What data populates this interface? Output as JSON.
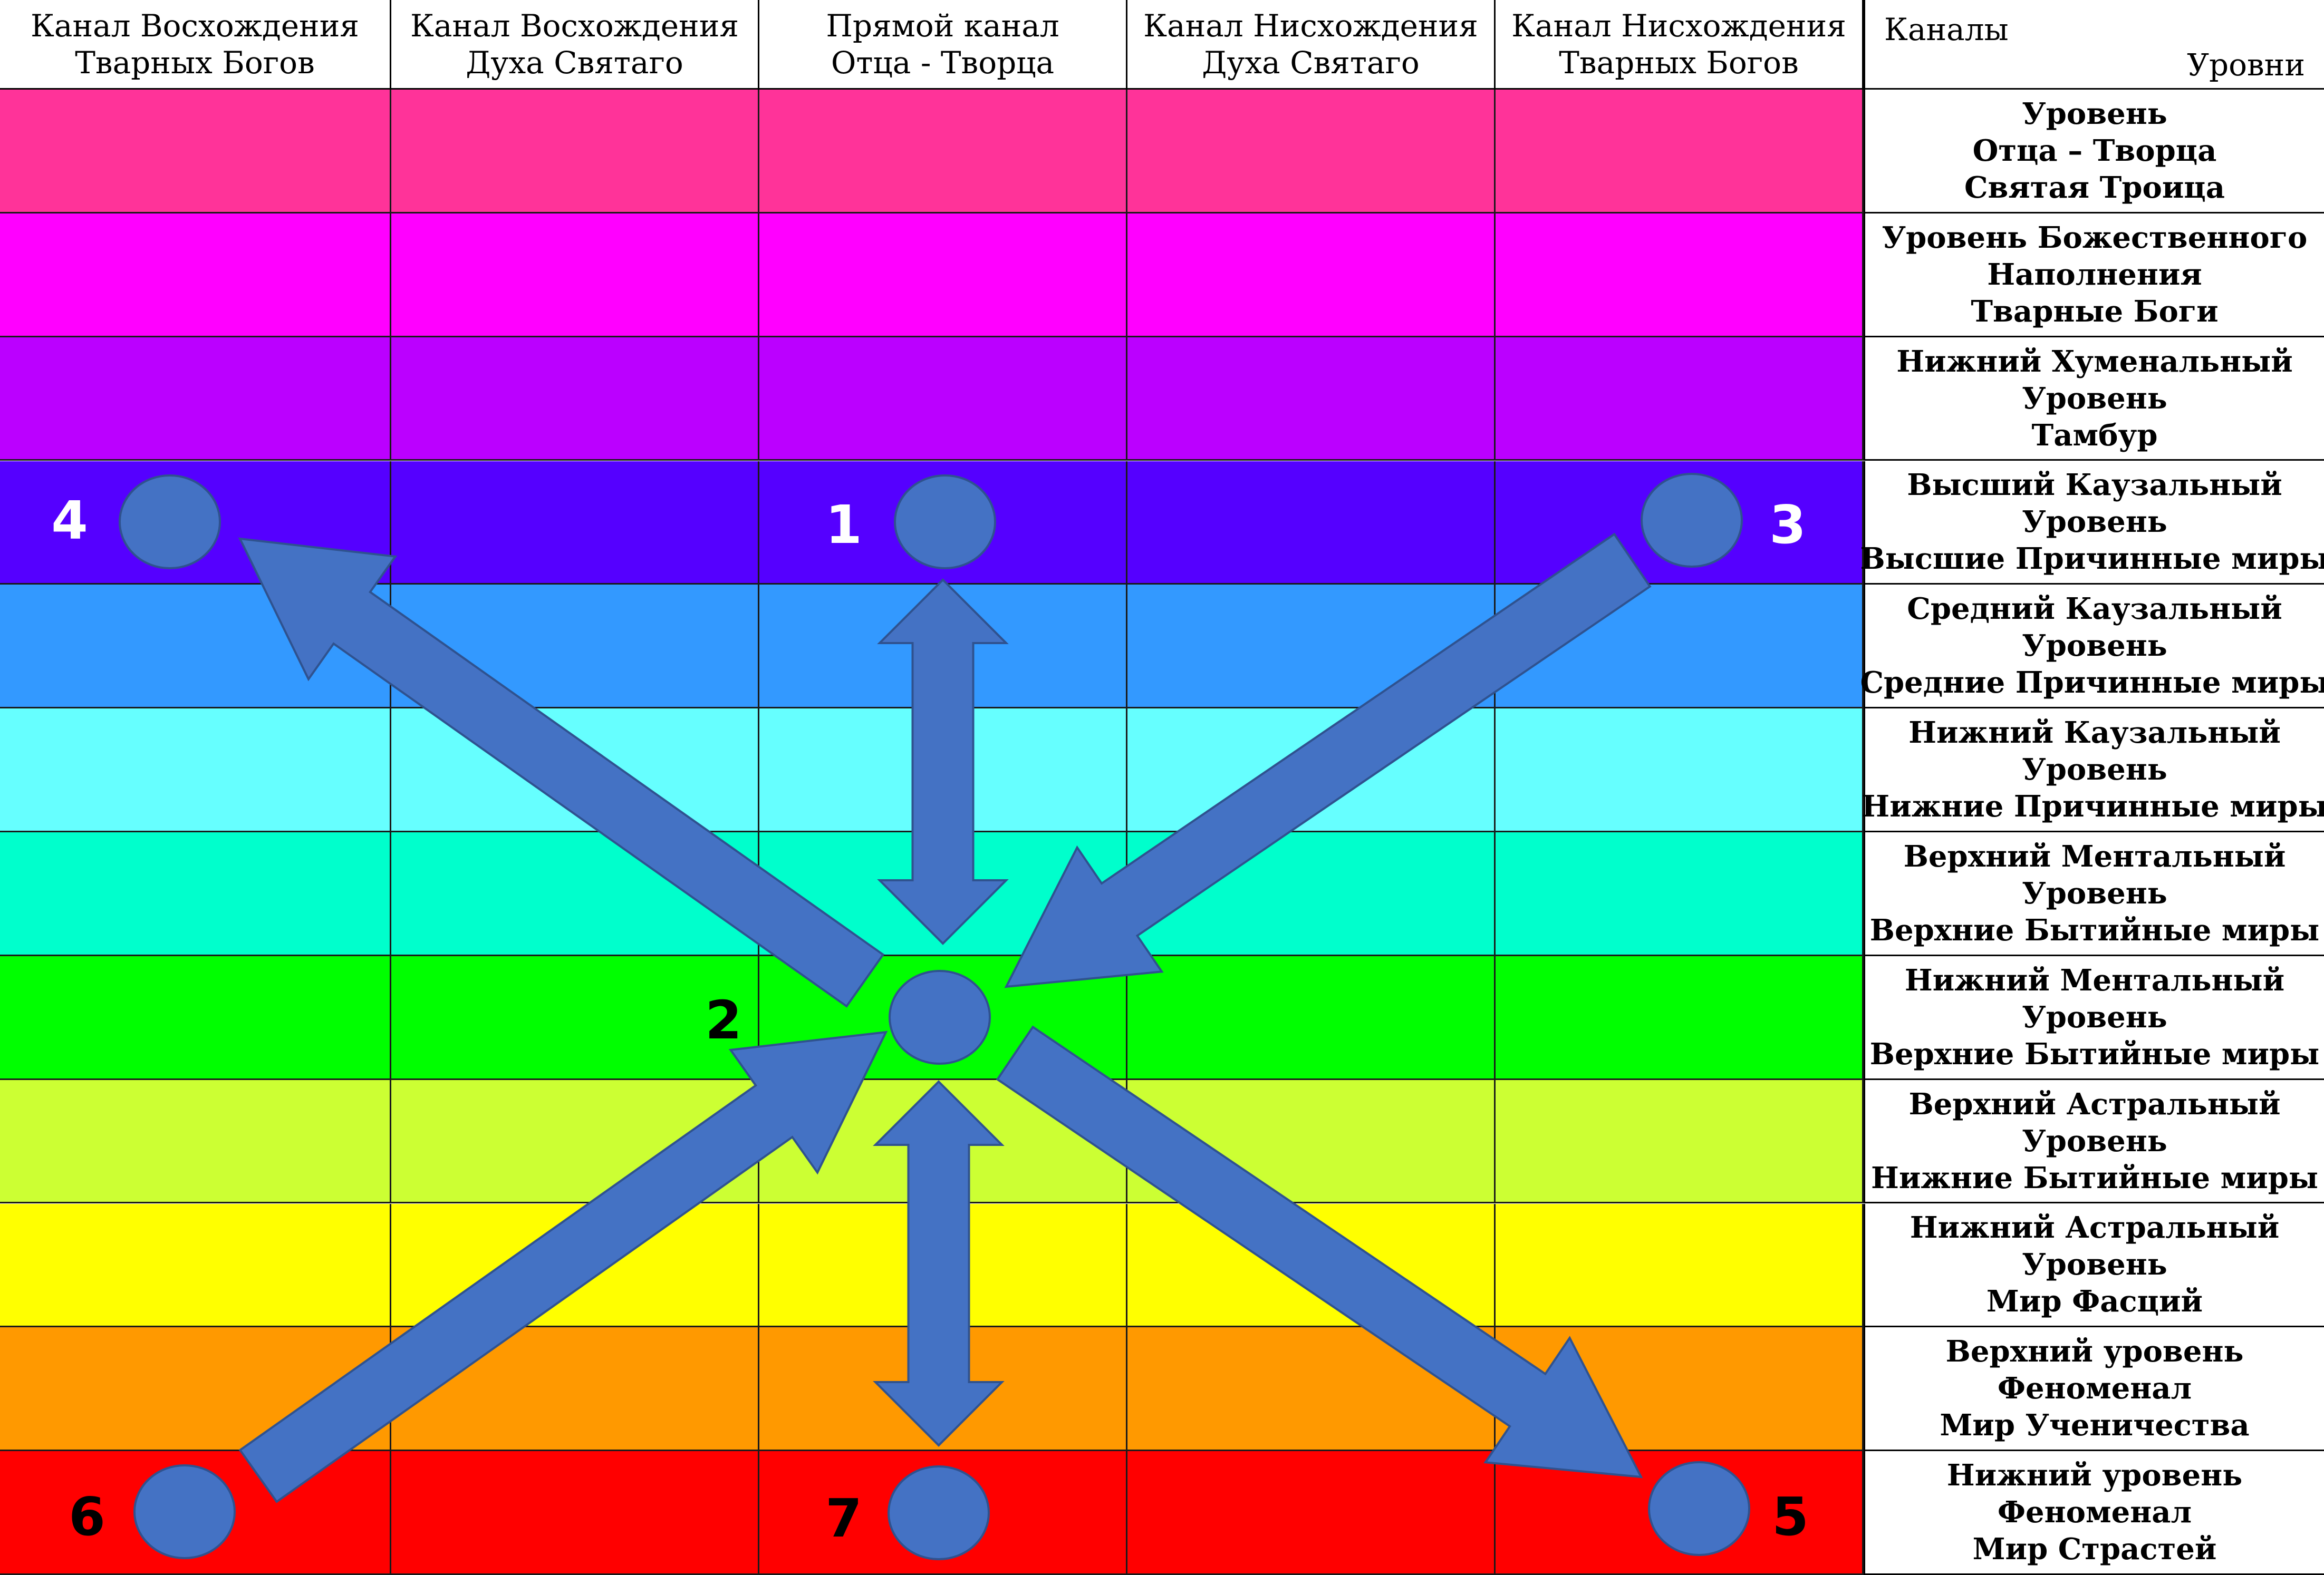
{
  "columns": [
    {
      "line1": "Канал Восхождения",
      "line2": "Тварных Богов"
    },
    {
      "line1": "Канал Восхождения",
      "line2": "Духа Святаго"
    },
    {
      "line1": "Прямой канал",
      "line2": "Отца - Творца"
    },
    {
      "line1": "Канал Нисхождения",
      "line2": "Духа Святаго"
    },
    {
      "line1": "Канал Нисхождения",
      "line2": "Тварных Богов"
    }
  ],
  "corner": {
    "channels": "Каналы",
    "levels": "Уровни"
  },
  "rows": [
    {
      "color": "#ff3399",
      "lines": [
        "Уровень",
        "Отца – Творца",
        "Святая  Троица"
      ]
    },
    {
      "color": "#ff00ff",
      "lines": [
        "Уровень Божественного",
        "Наполнения",
        "Тварные Боги"
      ]
    },
    {
      "color": "#bb00ff",
      "lines": [
        "Нижний Хуменальный",
        "Уровень",
        "Тамбур"
      ]
    },
    {
      "color": "#5500ff",
      "lines": [
        "Высший Каузальный",
        "Уровень",
        "Высшие Причинные миры"
      ]
    },
    {
      "color": "#3399ff",
      "lines": [
        "Средний Каузальный",
        "Уровень",
        "Средние Причинные миры"
      ]
    },
    {
      "color": "#66ffff",
      "lines": [
        "Нижний Каузальный",
        "Уровень",
        "Нижние Причинные миры"
      ]
    },
    {
      "color": "#00ffcc",
      "lines": [
        "Верхний Ментальный",
        "Уровень",
        "Верхние Бытийные миры"
      ]
    },
    {
      "color": "#00ff00",
      "lines": [
        "Нижний Ментальный",
        "Уровень",
        "Верхние Бытийные миры"
      ]
    },
    {
      "color": "#ccff33",
      "lines": [
        "Верхний Астральный",
        "Уровень",
        "Нижние Бытийные миры"
      ]
    },
    {
      "color": "#ffff00",
      "lines": [
        "Нижний Астральный",
        "Уровень",
        "Мир Фасций"
      ]
    },
    {
      "color": "#ff9900",
      "lines": [
        "Верхний уровень",
        "Феноменал",
        "Мир  Ученичества"
      ]
    },
    {
      "color": "#ff0000",
      "lines": [
        "Нижний уровень",
        "Феноменал",
        "Мир  Страстей"
      ]
    }
  ],
  "marker_color": "#4472c4",
  "nodes": [
    {
      "label": "1",
      "col": 2,
      "row": 3,
      "label_color": "#ffffff"
    },
    {
      "label": "2",
      "col": 2,
      "row": 7,
      "label_color": "#000000"
    },
    {
      "label": "3",
      "col": 4,
      "row": 3,
      "label_color": "#ffffff"
    },
    {
      "label": "4",
      "col": 0,
      "row": 3,
      "label_color": "#ffffff"
    },
    {
      "label": "5",
      "col": 4,
      "row": 11,
      "label_color": "#000000"
    },
    {
      "label": "6",
      "col": 0,
      "row": 11,
      "label_color": "#000000"
    },
    {
      "label": "7",
      "col": 2,
      "row": 11,
      "label_color": "#000000"
    }
  ],
  "arrows": [
    {
      "from": "2",
      "to": "1",
      "type": "double"
    },
    {
      "from": "2",
      "to": "7",
      "type": "double"
    },
    {
      "from": "3",
      "to": "2",
      "type": "single"
    },
    {
      "from": "2",
      "to": "4",
      "type": "single"
    },
    {
      "from": "6",
      "to": "2",
      "type": "single"
    },
    {
      "from": "2",
      "to": "5",
      "type": "single"
    }
  ]
}
